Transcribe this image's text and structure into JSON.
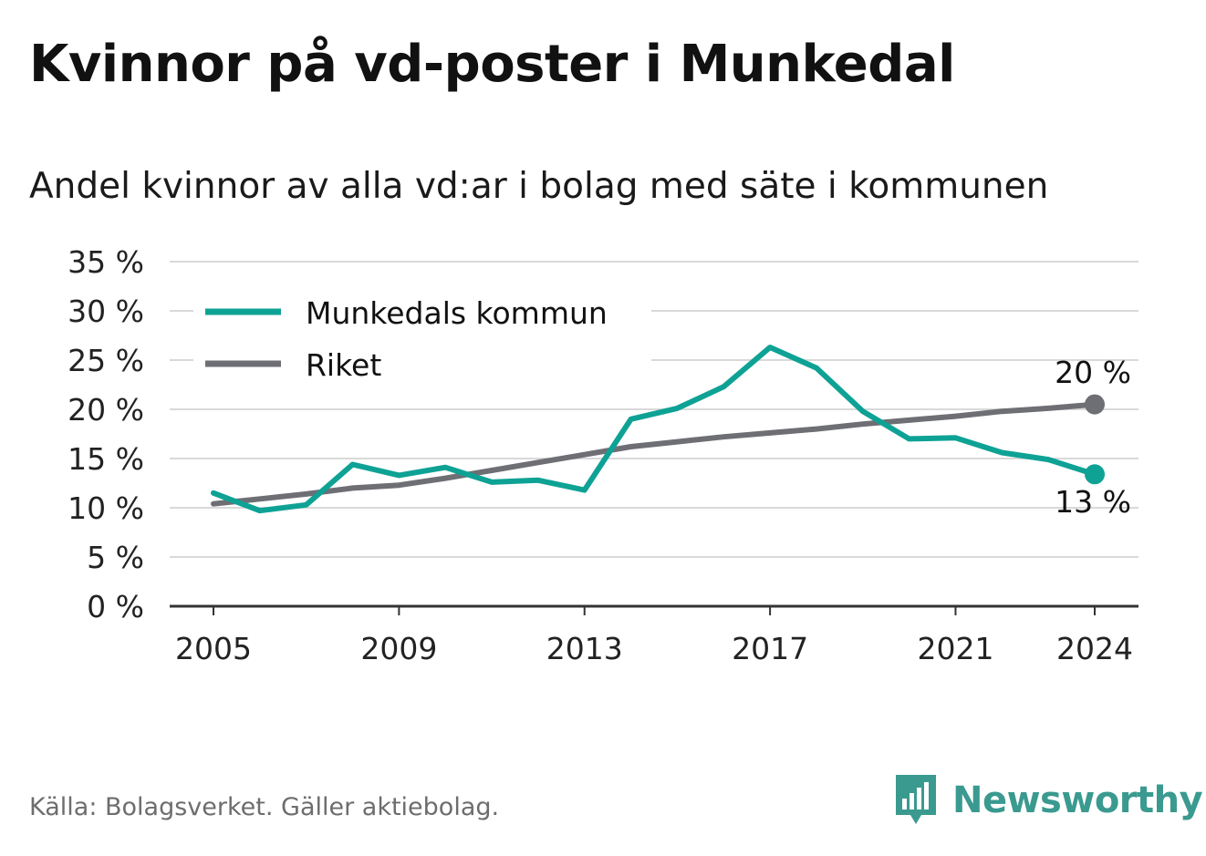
{
  "title": "Kvinnor på vd-poster i Munkedal",
  "subtitle": "Andel kvinnor av alla vd:ar i bolag med säte i kommunen",
  "source": "Källa: Bolagsverket. Gäller aktiebolag.",
  "brand": {
    "name": "Newsworthy",
    "icon": "newsworthy-bar-chart-icon"
  },
  "colors": {
    "munkedal": "#0ea295",
    "riket": "#6e6e75",
    "grid": "#d9d9d9",
    "axis": "#333333"
  },
  "chart_data": {
    "type": "line",
    "ylim": [
      0,
      35
    ],
    "y_ticks": [
      0,
      5,
      10,
      15,
      20,
      25,
      30,
      35
    ],
    "y_tick_labels": [
      "0 %",
      "5 %",
      "10 %",
      "15 %",
      "20 %",
      "25 %",
      "30 %",
      "35 %"
    ],
    "xlim": [
      2005,
      2024
    ],
    "x_ticks": [
      2005,
      2009,
      2013,
      2017,
      2021,
      2024
    ],
    "x_tick_labels": [
      "2005",
      "2009",
      "2013",
      "2017",
      "2021",
      "2024"
    ],
    "grid": true,
    "legend": "top-left",
    "x": [
      2005,
      2006,
      2007,
      2008,
      2009,
      2010,
      2011,
      2012,
      2013,
      2014,
      2015,
      2016,
      2017,
      2018,
      2019,
      2020,
      2021,
      2022,
      2023,
      2024
    ],
    "series": [
      {
        "name": "Munkedals kommun",
        "color": "#0ea295",
        "values": [
          11.5,
          9.7,
          10.3,
          14.4,
          13.3,
          14.1,
          12.6,
          12.8,
          11.8,
          19.0,
          20.1,
          22.3,
          26.3,
          24.2,
          19.8,
          17.0,
          17.1,
          15.6,
          14.9,
          13.4
        ],
        "end_label": "13 %"
      },
      {
        "name": "Riket",
        "color": "#6e6e75",
        "values": [
          10.4,
          10.9,
          11.4,
          12.0,
          12.3,
          13.0,
          13.8,
          14.6,
          15.4,
          16.2,
          16.7,
          17.2,
          17.6,
          18.0,
          18.5,
          18.9,
          19.3,
          19.8,
          20.1,
          20.5
        ],
        "end_label": "20 %"
      }
    ]
  }
}
